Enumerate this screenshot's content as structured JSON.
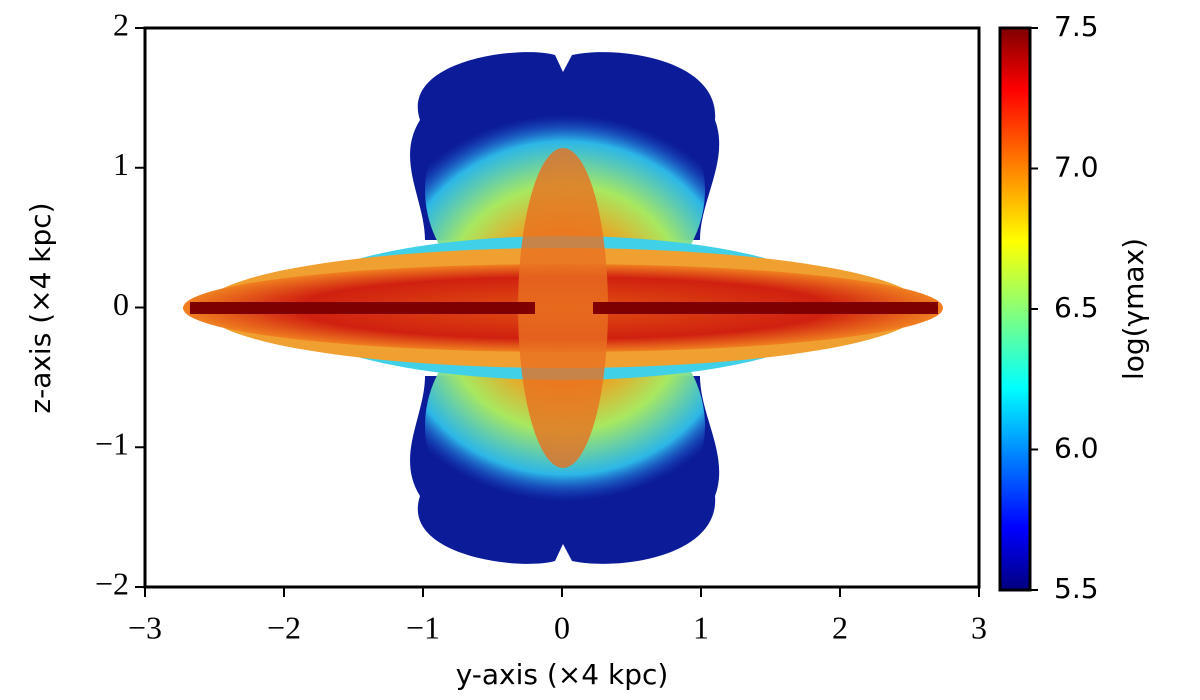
{
  "chart_data": {
    "type": "scatter",
    "xlabel": "y-axis (×4 kpc)",
    "ylabel": "z-axis (×4 kpc)",
    "xlim": [
      -3,
      3
    ],
    "ylim": [
      -2,
      2
    ],
    "xticks": [
      {
        "value": -3,
        "label": "−3"
      },
      {
        "value": -2,
        "label": "−2"
      },
      {
        "value": -1,
        "label": "−1"
      },
      0,
      1,
      2,
      3
    ],
    "yticks": [
      {
        "value": -2,
        "label": "−2"
      },
      {
        "value": -1,
        "label": "−1"
      },
      0,
      1,
      2
    ],
    "colorbar": {
      "label": "log(γmax)",
      "colormap": "jet",
      "lim": [
        5.5,
        7.5
      ],
      "ticks": [
        5.5,
        {
          "value": 6,
          "label": "6.0"
        },
        6.5,
        {
          "value": 7,
          "label": "7.0"
        },
        7.5
      ]
    }
  }
}
